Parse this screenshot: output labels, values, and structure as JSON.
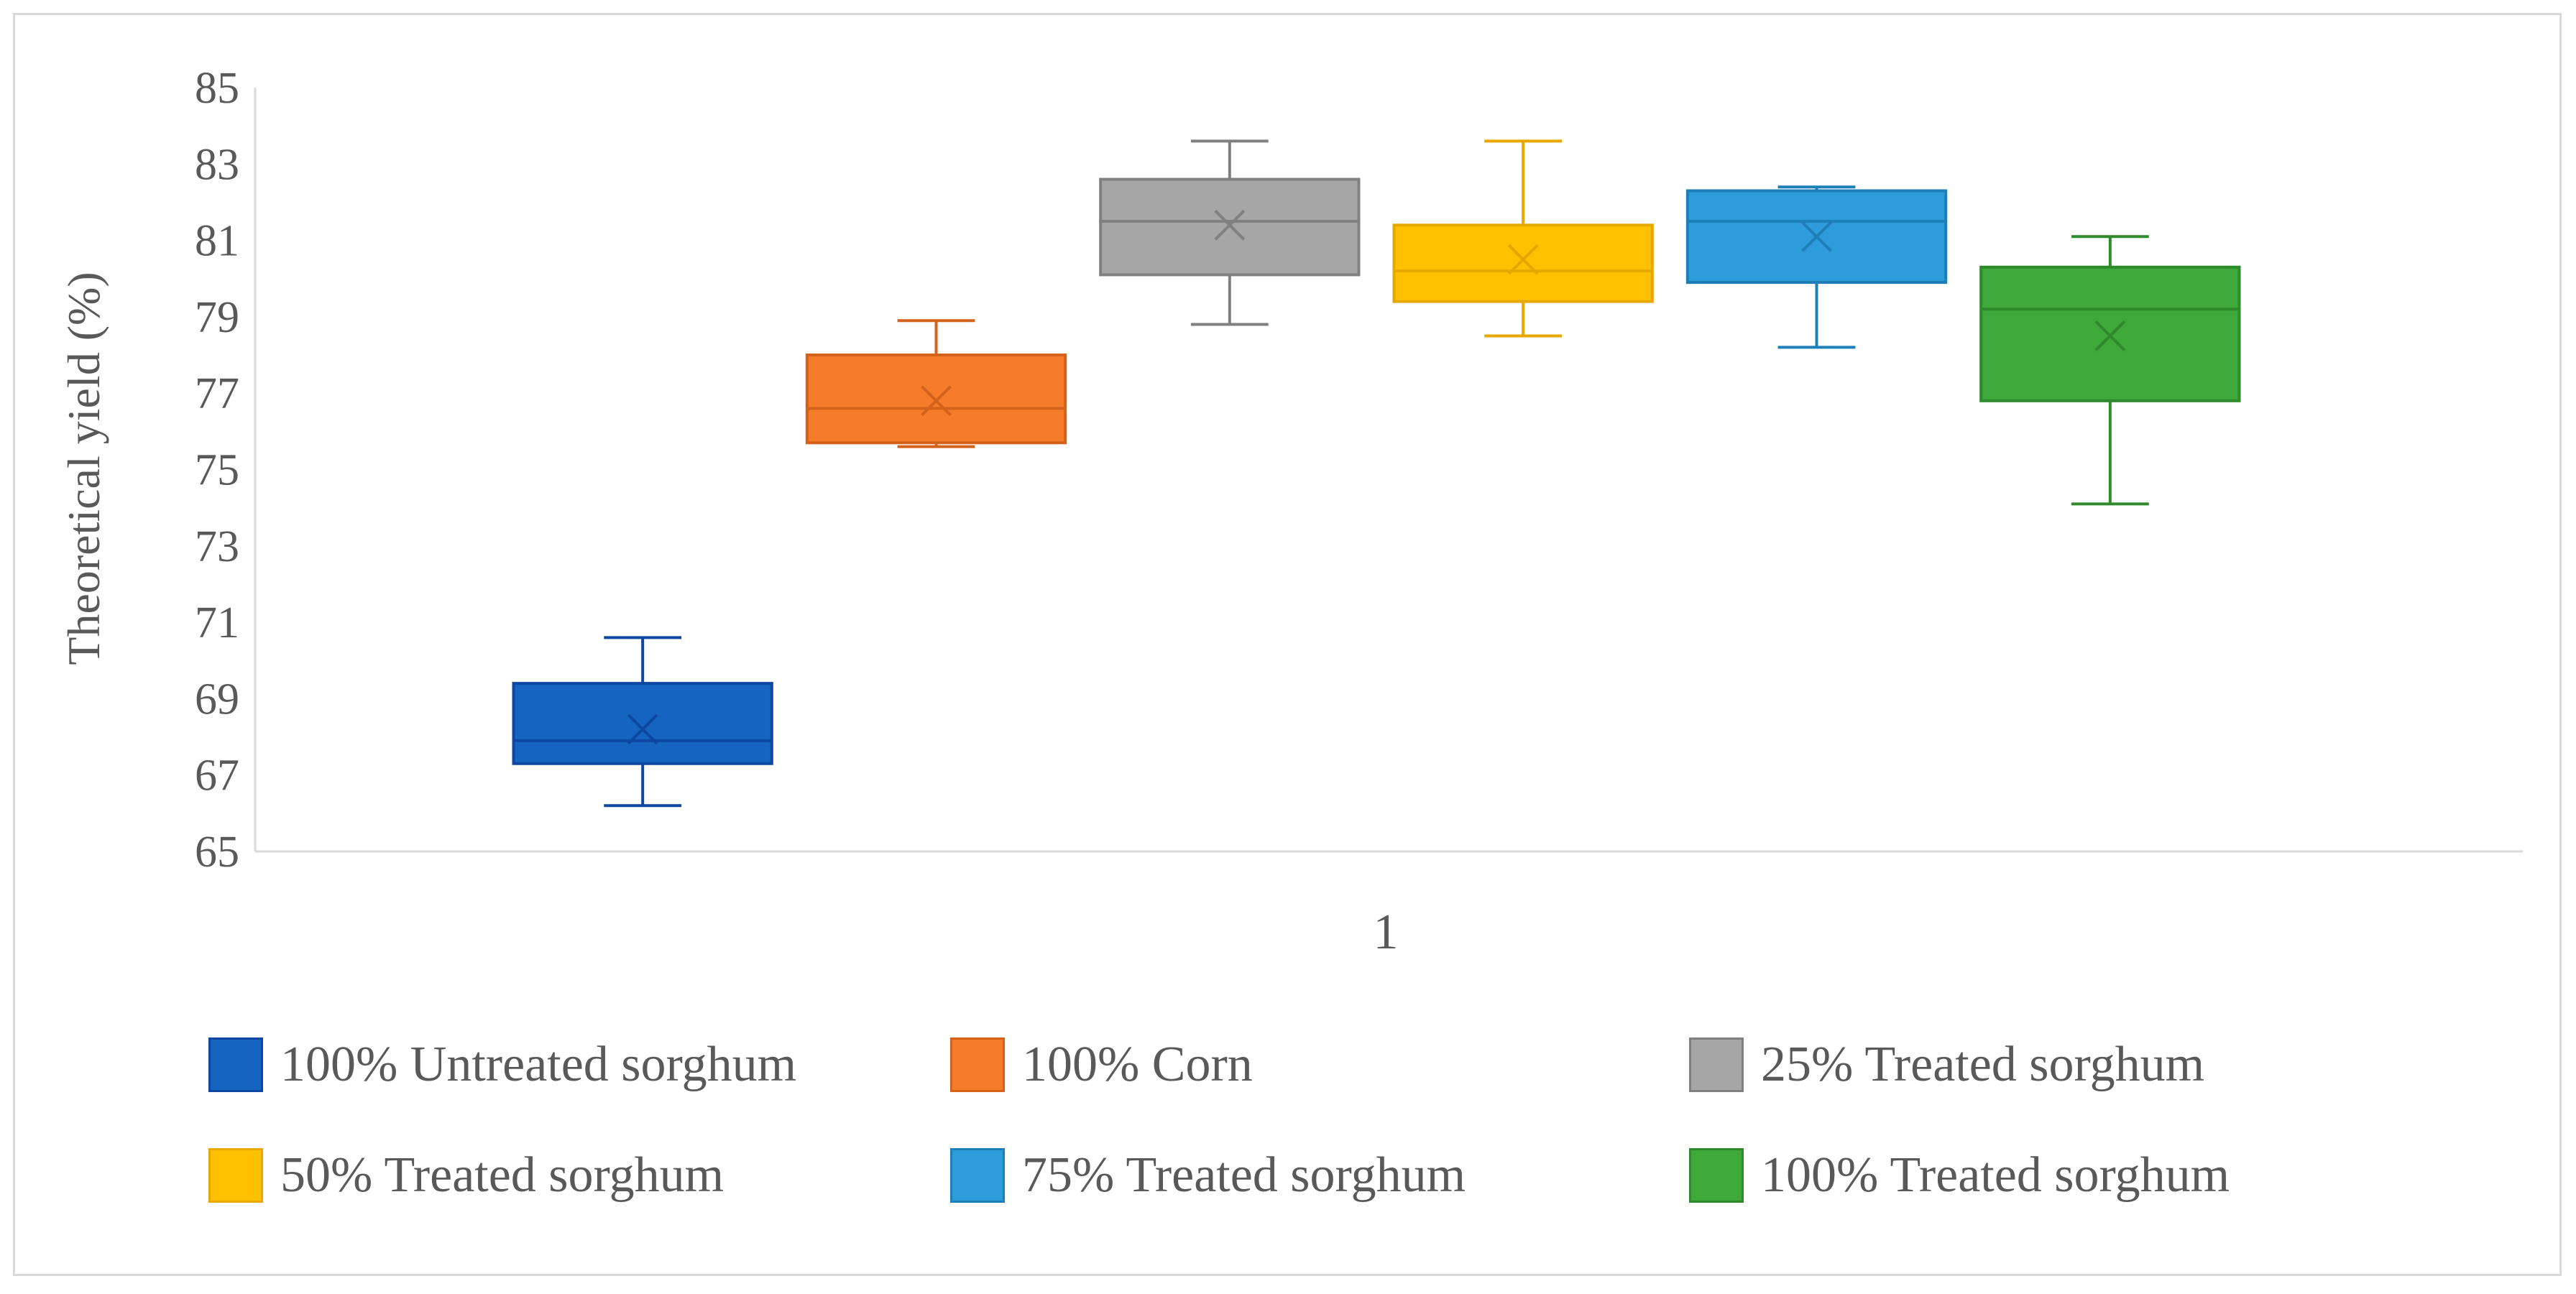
{
  "chart_data": {
    "type": "box",
    "title": "",
    "xlabel": "",
    "ylabel": "Theoretical yield (%)",
    "ylim": [
      65,
      85
    ],
    "yticks": [
      65,
      67,
      69,
      71,
      73,
      75,
      77,
      79,
      81,
      83,
      85
    ],
    "categories": [
      "1"
    ],
    "grid": false,
    "legend_position": "bottom",
    "series": [
      {
        "name": "100% Untreated sorghum",
        "color": "#1565C0",
        "stroke": "#0D47A1",
        "whisker_low": 66.2,
        "q1": 67.3,
        "median": 67.9,
        "q3": 69.4,
        "whisker_high": 70.6,
        "mean": 68.2
      },
      {
        "name": "100% Corn",
        "color": "#F57C2A",
        "stroke": "#D4621A",
        "whisker_low": 75.6,
        "q1": 75.7,
        "median": 76.6,
        "q3": 78.0,
        "whisker_high": 78.9,
        "mean": 76.8
      },
      {
        "name": "25% Treated sorghum",
        "color": "#A6A6A6",
        "stroke": "#808080",
        "whisker_low": 78.8,
        "q1": 80.1,
        "median": 81.5,
        "q3": 82.6,
        "whisker_high": 83.6,
        "mean": 81.4
      },
      {
        "name": "50% Treated sorghum",
        "color": "#FFC000",
        "stroke": "#E6A800",
        "whisker_low": 78.5,
        "q1": 79.4,
        "median": 80.2,
        "q3": 81.4,
        "whisker_high": 83.6,
        "mean": 80.5
      },
      {
        "name": "75% Treated sorghum",
        "color": "#2E9BDB",
        "stroke": "#1E7FB8",
        "whisker_low": 78.2,
        "q1": 79.9,
        "median": 81.5,
        "q3": 82.3,
        "whisker_high": 82.4,
        "mean": 81.1
      },
      {
        "name": "100% Treated sorghum",
        "color": "#3EA83A",
        "stroke": "#2E8A2B",
        "whisker_low": 74.1,
        "q1": 76.8,
        "median": 79.2,
        "q3": 80.3,
        "whisker_high": 81.1,
        "mean": 78.5
      }
    ]
  }
}
